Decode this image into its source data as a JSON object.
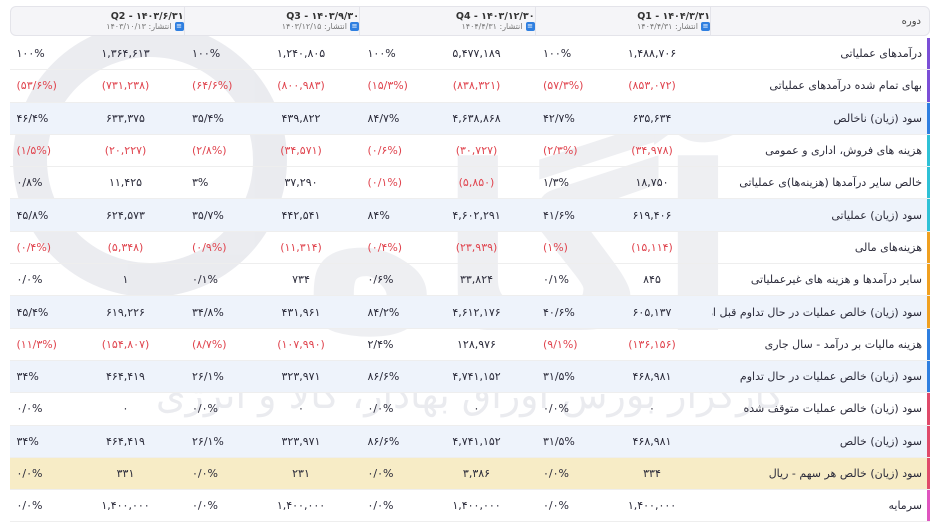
{
  "header": {
    "period_label": "دوره",
    "periods": [
      {
        "title": "Q1 - ۱۴۰۴/۳/۳۱",
        "published": "انتشار: ۱۴۰۴/۴/۳۱"
      },
      {
        "title": "Q4 - ۱۴۰۳/۱۲/۳۰",
        "published": "انتشار: ۱۴۰۴/۴/۳۱"
      },
      {
        "title": "Q3 - ۱۴۰۳/۹/۳۰",
        "published": "انتشار: ۱۴۰۳/۱۲/۱۵"
      },
      {
        "title": "Q2 - ۱۴۰۳/۶/۳۱",
        "published": "انتشار: ۱۴۰۳/۱۰/۱۳"
      }
    ]
  },
  "rows": [
    {
      "label": "درآمدهای عملیاتی",
      "style": "plain",
      "bar": "#7b4fd6",
      "cells": [
        {
          "v": "۱,۴۸۸,۷۰۶",
          "p": "۱۰۰%"
        },
        {
          "v": "۵,۴۷۷,۱۸۹",
          "p": "۱۰۰%"
        },
        {
          "v": "۱,۲۴۰,۸۰۵",
          "p": "۱۰۰%"
        },
        {
          "v": "۱,۳۶۴,۶۱۳",
          "p": "۱۰۰%"
        }
      ]
    },
    {
      "label": "بهای تمام شده درآمدهای عملیاتی",
      "style": "plain",
      "bar": "#7b4fd6",
      "neg": true,
      "cells": [
        {
          "v": "(۸۵۳,۰۷۲)",
          "p": "(۵۷/۳%)"
        },
        {
          "v": "(۸۳۸,۳۲۱)",
          "p": "(۱۵/۳%)"
        },
        {
          "v": "(۸۰۰,۹۸۳)",
          "p": "(۶۴/۶%)"
        },
        {
          "v": "(۷۳۱,۲۳۸)",
          "p": "(۵۳/۶%)"
        }
      ]
    },
    {
      "label": "سود (زیان) ناخالص",
      "style": "alt",
      "bar": "#2f7fe0",
      "cells": [
        {
          "v": "۶۳۵,۶۳۴",
          "p": "۴۲/۷%"
        },
        {
          "v": "۴,۶۳۸,۸۶۸",
          "p": "۸۴/۷%"
        },
        {
          "v": "۴۳۹,۸۲۲",
          "p": "۳۵/۴%"
        },
        {
          "v": "۶۳۳,۳۷۵",
          "p": "۴۶/۴%"
        }
      ]
    },
    {
      "label": "هزینه های فروش، اداری و عمومی",
      "style": "plain",
      "bar": "#2fc1d6",
      "neg": true,
      "cells": [
        {
          "v": "(۳۴,۹۷۸)",
          "p": "(۲/۳%)"
        },
        {
          "v": "(۳۰,۷۲۷)",
          "p": "(۰/۶%)"
        },
        {
          "v": "(۳۴,۵۷۱)",
          "p": "(۲/۸%)"
        },
        {
          "v": "(۲۰,۲۲۷)",
          "p": "(۱/۵%)"
        }
      ]
    },
    {
      "label": "خالص سایر درآمدها (هزینه‌ها)ی عملیاتی",
      "style": "plain",
      "bar": "#2fc1d6",
      "mixed": true,
      "cells": [
        {
          "v": "۱۸,۷۵۰",
          "p": "۱/۳%"
        },
        {
          "v": "(۵,۸۵۰)",
          "p": "(۰/۱%)",
          "n": true
        },
        {
          "v": "۳۷,۲۹۰",
          "p": "۳%"
        },
        {
          "v": "۱۱,۴۲۵",
          "p": "۰/۸%"
        }
      ]
    },
    {
      "label": "سود (زیان) عملیاتی",
      "style": "alt",
      "bar": "#2fc1d6",
      "cells": [
        {
          "v": "۶۱۹,۴۰۶",
          "p": "۴۱/۶%"
        },
        {
          "v": "۴,۶۰۲,۲۹۱",
          "p": "۸۴%"
        },
        {
          "v": "۴۴۲,۵۴۱",
          "p": "۳۵/۷%"
        },
        {
          "v": "۶۲۴,۵۷۳",
          "p": "۴۵/۸%"
        }
      ]
    },
    {
      "label": "هزینه‌های مالی",
      "style": "plain",
      "bar": "#f0a020",
      "neg": true,
      "cells": [
        {
          "v": "(۱۵,۱۱۴)",
          "p": "(۱%)"
        },
        {
          "v": "(۲۳,۹۳۹)",
          "p": "(۰/۴%)"
        },
        {
          "v": "(۱۱,۳۱۴)",
          "p": "(۰/۹%)"
        },
        {
          "v": "(۵,۳۴۸)",
          "p": "(۰/۴%)"
        }
      ]
    },
    {
      "label": "سایر درآمدها و هزینه های غیرعملیاتی",
      "style": "plain",
      "bar": "#f0a020",
      "cells": [
        {
          "v": "۸۴۵",
          "p": "۰/۱%"
        },
        {
          "v": "۳۳,۸۲۴",
          "p": "۰/۶%"
        },
        {
          "v": "۷۳۴",
          "p": "۰/۱%"
        },
        {
          "v": "۱",
          "p": "۰/۰%"
        }
      ]
    },
    {
      "label": "سود (زیان) خالص عملیات در حال تداوم قبل از مالیات",
      "style": "alt",
      "bar": "#f0a020",
      "cells": [
        {
          "v": "۶۰۵,۱۳۷",
          "p": "۴۰/۶%"
        },
        {
          "v": "۴,۶۱۲,۱۷۶",
          "p": "۸۴/۲%"
        },
        {
          "v": "۴۳۱,۹۶۱",
          "p": "۳۴/۸%"
        },
        {
          "v": "۶۱۹,۲۲۶",
          "p": "۴۵/۴%"
        }
      ]
    },
    {
      "label": "هزینه مالیات بر درآمد - سال جاری",
      "style": "plain",
      "bar": "#2f7fe0",
      "mixed": true,
      "cells": [
        {
          "v": "(۱۳۶,۱۵۶)",
          "p": "(۹/۱%)",
          "n": true
        },
        {
          "v": "۱۲۸,۹۷۶",
          "p": "۲/۴%"
        },
        {
          "v": "(۱۰۷,۹۹۰)",
          "p": "(۸/۷%)",
          "n": true
        },
        {
          "v": "(۱۵۴,۸۰۷)",
          "p": "(۱۱/۳%)",
          "n": true
        }
      ]
    },
    {
      "label": "سود (زیان) خالص عملیات در حال تداوم",
      "style": "alt",
      "bar": "#2f7fe0",
      "cells": [
        {
          "v": "۴۶۸,۹۸۱",
          "p": "۳۱/۵%"
        },
        {
          "v": "۴,۷۴۱,۱۵۲",
          "p": "۸۶/۶%"
        },
        {
          "v": "۳۲۳,۹۷۱",
          "p": "۲۶/۱%"
        },
        {
          "v": "۴۶۴,۴۱۹",
          "p": "۳۴%"
        }
      ]
    },
    {
      "label": "سود (زیان) خالص عملیات متوقف شده",
      "style": "plain",
      "bar": "#e04a6a",
      "cells": [
        {
          "v": "۰",
          "p": "۰/۰%"
        },
        {
          "v": "۰",
          "p": "۰/۰%"
        },
        {
          "v": "۰",
          "p": "۰/۰%"
        },
        {
          "v": "۰",
          "p": "۰/۰%"
        }
      ]
    },
    {
      "label": "سود (زیان) خالص",
      "style": "alt",
      "bar": "#e04a6a",
      "cells": [
        {
          "v": "۴۶۸,۹۸۱",
          "p": "۳۱/۵%"
        },
        {
          "v": "۴,۷۴۱,۱۵۲",
          "p": "۸۶/۶%"
        },
        {
          "v": "۳۲۳,۹۷۱",
          "p": "۲۶/۱%"
        },
        {
          "v": "۴۶۴,۴۱۹",
          "p": "۳۴%"
        }
      ]
    },
    {
      "label": "سود (زیان) خالص هر سهم - ریال",
      "style": "gold",
      "bar": "#e04a6a",
      "cells": [
        {
          "v": "۳۳۴",
          "p": "۰/۰%"
        },
        {
          "v": "۳,۳۸۶",
          "p": "۰/۰%"
        },
        {
          "v": "۲۳۱",
          "p": "۰/۰%"
        },
        {
          "v": "۳۳۱",
          "p": "۰/۰%"
        }
      ]
    },
    {
      "label": "سرمایه",
      "style": "plain",
      "bar": "#e055c0",
      "cells": [
        {
          "v": "۱,۴۰۰,۰۰۰",
          "p": "۰/۰%"
        },
        {
          "v": "۱,۴۰۰,۰۰۰",
          "p": "۰/۰%"
        },
        {
          "v": "۱,۴۰۰,۰۰۰",
          "p": "۰/۰%"
        },
        {
          "v": "۱,۴۰۰,۰۰۰",
          "p": "۰/۰%"
        }
      ]
    }
  ],
  "watermark": {
    "logo_text": "آگاه",
    "caption": "کارگزار بورس اوراق بهادار، کالا و انرژی"
  }
}
